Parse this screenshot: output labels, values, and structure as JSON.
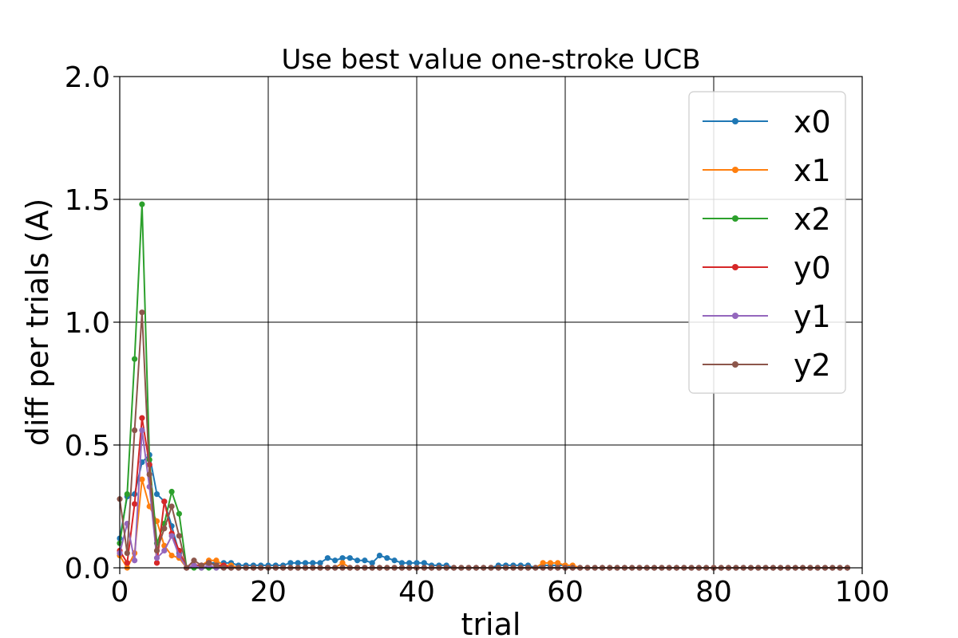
{
  "chart_data": {
    "type": "line",
    "title": "Use best value one-stroke UCB",
    "xlabel": "trial",
    "ylabel": "diff  per  trials (A)",
    "xlim": [
      0,
      100
    ],
    "ylim": [
      0,
      2.0
    ],
    "xticks": [
      "0",
      "20",
      "40",
      "60",
      "80",
      "100"
    ],
    "yticks": [
      "0.0",
      "0.5",
      "1.0",
      "1.5",
      "2.0"
    ],
    "grid": true,
    "legend_position": "top-right",
    "x": [
      0,
      1,
      2,
      3,
      4,
      5,
      6,
      7,
      8,
      9,
      10,
      11,
      12,
      13,
      14,
      15,
      16,
      17,
      18,
      19,
      20,
      21,
      22,
      23,
      24,
      25,
      26,
      27,
      28,
      29,
      30,
      31,
      32,
      33,
      34,
      35,
      36,
      37,
      38,
      39,
      40,
      41,
      42,
      43,
      44,
      45,
      46,
      47,
      48,
      49,
      50,
      51,
      52,
      53,
      54,
      55,
      56,
      57,
      58,
      59,
      60,
      61,
      62,
      63,
      64,
      65,
      66,
      67,
      68,
      69,
      70,
      71,
      72,
      73,
      74,
      75,
      76,
      77,
      78,
      79,
      80,
      81,
      82,
      83,
      84,
      85,
      86,
      87,
      88,
      89,
      90,
      91,
      92,
      93,
      94,
      95,
      96,
      97,
      98
    ],
    "series": [
      {
        "name": "x0",
        "color": "#1f77b4",
        "values": [
          0.12,
          0.29,
          0.3,
          0.43,
          0.46,
          0.3,
          0.27,
          0.17,
          0.06,
          0.0,
          0.01,
          0.01,
          0.02,
          0.02,
          0.02,
          0.02,
          0.01,
          0.01,
          0.01,
          0.01,
          0.01,
          0.01,
          0.01,
          0.02,
          0.02,
          0.02,
          0.02,
          0.02,
          0.04,
          0.03,
          0.04,
          0.04,
          0.03,
          0.03,
          0.02,
          0.05,
          0.04,
          0.03,
          0.02,
          0.02,
          0.02,
          0.02,
          0.01,
          0.01,
          0.01,
          0.0,
          0.0,
          0.0,
          0.0,
          0.0,
          0.0,
          0.01,
          0.01,
          0.01,
          0.01,
          0.01,
          0.0,
          0.01,
          0.01,
          0.01,
          0.01,
          0.0,
          0.0,
          0.0,
          0.0,
          0.0,
          0.0,
          0.0,
          0.0,
          0.0,
          0.0,
          0.0,
          0.0,
          0.0,
          0.0,
          0.0,
          0.0,
          0.0,
          0.0,
          0.0,
          0.0,
          0.0,
          0.0,
          0.0,
          0.0,
          0.0,
          0.0,
          0.0,
          0.0,
          0.0,
          0.0,
          0.0,
          0.0,
          0.0,
          0.0,
          0.0,
          0.0,
          0.0,
          0.0
        ]
      },
      {
        "name": "x1",
        "color": "#ff7f0e",
        "values": [
          0.05,
          0.0,
          0.06,
          0.36,
          0.25,
          0.19,
          0.09,
          0.05,
          0.04,
          0.0,
          0.01,
          0.01,
          0.03,
          0.03,
          0.01,
          0.01,
          0.0,
          0.0,
          0.0,
          0.0,
          0.0,
          0.0,
          0.0,
          0.0,
          0.0,
          0.0,
          0.0,
          0.0,
          0.0,
          0.0,
          0.02,
          0.0,
          0.0,
          0.0,
          0.0,
          0.0,
          0.0,
          0.0,
          0.0,
          0.0,
          0.0,
          0.0,
          0.0,
          0.0,
          0.0,
          0.0,
          0.0,
          0.0,
          0.0,
          0.0,
          0.0,
          0.0,
          0.0,
          0.0,
          0.0,
          0.0,
          0.0,
          0.02,
          0.02,
          0.02,
          0.01,
          0.01,
          0.0,
          0.0,
          0.0,
          0.0,
          0.0,
          0.0,
          0.0,
          0.0,
          0.0,
          0.0,
          0.0,
          0.0,
          0.0,
          0.0,
          0.0,
          0.0,
          0.0,
          0.0,
          0.0,
          0.0,
          0.0,
          0.0,
          0.0,
          0.0,
          0.0,
          0.0,
          0.0,
          0.0,
          0.0,
          0.0,
          0.0,
          0.0,
          0.0,
          0.0,
          0.0,
          0.0,
          0.0
        ]
      },
      {
        "name": "x2",
        "color": "#2ca02c",
        "values": [
          0.1,
          0.3,
          0.85,
          1.48,
          0.44,
          0.1,
          0.18,
          0.31,
          0.22,
          0.0,
          0.0,
          0.0,
          0.0,
          0.0,
          0.0,
          0.0,
          0.0,
          0.0,
          0.0,
          0.0,
          0.0,
          0.0,
          0.0,
          0.0,
          0.0,
          0.0,
          0.0,
          0.0,
          0.0,
          0.0,
          0.0,
          0.0,
          0.0,
          0.0,
          0.0,
          0.0,
          0.0,
          0.0,
          0.0,
          0.0,
          0.0,
          0.0,
          0.0,
          0.0,
          0.0,
          0.0,
          0.0,
          0.0,
          0.0,
          0.0,
          0.0,
          0.0,
          0.0,
          0.0,
          0.0,
          0.0,
          0.0,
          0.0,
          0.0,
          0.0,
          0.0,
          0.0,
          0.0,
          0.0,
          0.0,
          0.0,
          0.0,
          0.0,
          0.0,
          0.0,
          0.0,
          0.0,
          0.0,
          0.0,
          0.0,
          0.0,
          0.0,
          0.0,
          0.0,
          0.0,
          0.0,
          0.0,
          0.0,
          0.0,
          0.0,
          0.0,
          0.0,
          0.0,
          0.0,
          0.0,
          0.0,
          0.0,
          0.0,
          0.0,
          0.0,
          0.0,
          0.0,
          0.0,
          0.0
        ]
      },
      {
        "name": "y0",
        "color": "#d62728",
        "values": [
          0.07,
          0.02,
          0.26,
          0.61,
          0.42,
          0.02,
          0.27,
          0.14,
          0.07,
          0.0,
          0.01,
          0.01,
          0.02,
          0.01,
          0.01,
          0.0,
          0.0,
          0.0,
          0.0,
          0.0,
          0.0,
          0.0,
          0.0,
          0.0,
          0.0,
          0.0,
          0.0,
          0.0,
          0.0,
          0.0,
          0.0,
          0.0,
          0.0,
          0.0,
          0.0,
          0.0,
          0.0,
          0.0,
          0.0,
          0.0,
          0.0,
          0.0,
          0.0,
          0.0,
          0.0,
          0.0,
          0.0,
          0.0,
          0.0,
          0.0,
          0.0,
          0.0,
          0.0,
          0.0,
          0.0,
          0.0,
          0.0,
          0.0,
          0.0,
          0.0,
          0.0,
          0.0,
          0.0,
          0.0,
          0.0,
          0.0,
          0.0,
          0.0,
          0.0,
          0.0,
          0.0,
          0.0,
          0.0,
          0.0,
          0.0,
          0.0,
          0.0,
          0.0,
          0.0,
          0.0,
          0.0,
          0.0,
          0.0,
          0.0,
          0.0,
          0.0,
          0.0,
          0.0,
          0.0,
          0.0,
          0.0,
          0.0,
          0.0,
          0.0,
          0.0,
          0.0,
          0.0,
          0.0,
          0.0
        ]
      },
      {
        "name": "y1",
        "color": "#9467bd",
        "values": [
          0.06,
          0.18,
          0.03,
          0.56,
          0.33,
          0.04,
          0.07,
          0.13,
          0.05,
          0.0,
          0.01,
          0.0,
          0.01,
          0.0,
          0.0,
          0.0,
          0.0,
          0.0,
          0.0,
          0.0,
          0.0,
          0.0,
          0.0,
          0.0,
          0.0,
          0.0,
          0.0,
          0.0,
          0.0,
          0.0,
          0.0,
          0.0,
          0.0,
          0.0,
          0.0,
          0.0,
          0.0,
          0.0,
          0.0,
          0.0,
          0.0,
          0.0,
          0.0,
          0.0,
          0.0,
          0.0,
          0.0,
          0.0,
          0.0,
          0.0,
          0.0,
          0.0,
          0.0,
          0.0,
          0.0,
          0.0,
          0.0,
          0.0,
          0.0,
          0.0,
          0.0,
          0.0,
          0.0,
          0.0,
          0.0,
          0.0,
          0.0,
          0.0,
          0.0,
          0.0,
          0.0,
          0.0,
          0.0,
          0.0,
          0.0,
          0.0,
          0.0,
          0.0,
          0.0,
          0.0,
          0.0,
          0.0,
          0.0,
          0.0,
          0.0,
          0.0,
          0.0,
          0.0,
          0.0,
          0.0,
          0.0,
          0.0,
          0.0,
          0.0,
          0.0,
          0.0,
          0.0,
          0.0,
          0.0
        ]
      },
      {
        "name": "y2",
        "color": "#8c564b",
        "values": [
          0.28,
          0.06,
          0.56,
          1.04,
          0.38,
          0.07,
          0.16,
          0.25,
          0.13,
          0.0,
          0.03,
          0.01,
          0.02,
          0.01,
          0.0,
          0.0,
          0.0,
          0.0,
          0.0,
          0.0,
          0.0,
          0.0,
          0.0,
          0.0,
          0.0,
          0.0,
          0.0,
          0.0,
          0.0,
          0.0,
          0.0,
          0.0,
          0.0,
          0.0,
          0.0,
          0.0,
          0.0,
          0.0,
          0.0,
          0.0,
          0.0,
          0.0,
          0.0,
          0.0,
          0.0,
          0.0,
          0.0,
          0.0,
          0.0,
          0.0,
          0.0,
          0.0,
          0.0,
          0.0,
          0.0,
          0.0,
          0.0,
          0.0,
          0.0,
          0.0,
          0.0,
          0.0,
          0.0,
          0.0,
          0.0,
          0.0,
          0.0,
          0.0,
          0.0,
          0.0,
          0.0,
          0.0,
          0.0,
          0.0,
          0.0,
          0.0,
          0.0,
          0.0,
          0.0,
          0.0,
          0.0,
          0.0,
          0.0,
          0.0,
          0.0,
          0.0,
          0.0,
          0.0,
          0.0,
          0.0,
          0.0,
          0.0,
          0.0,
          0.0,
          0.0,
          0.0,
          0.0,
          0.0,
          0.0
        ]
      }
    ]
  }
}
